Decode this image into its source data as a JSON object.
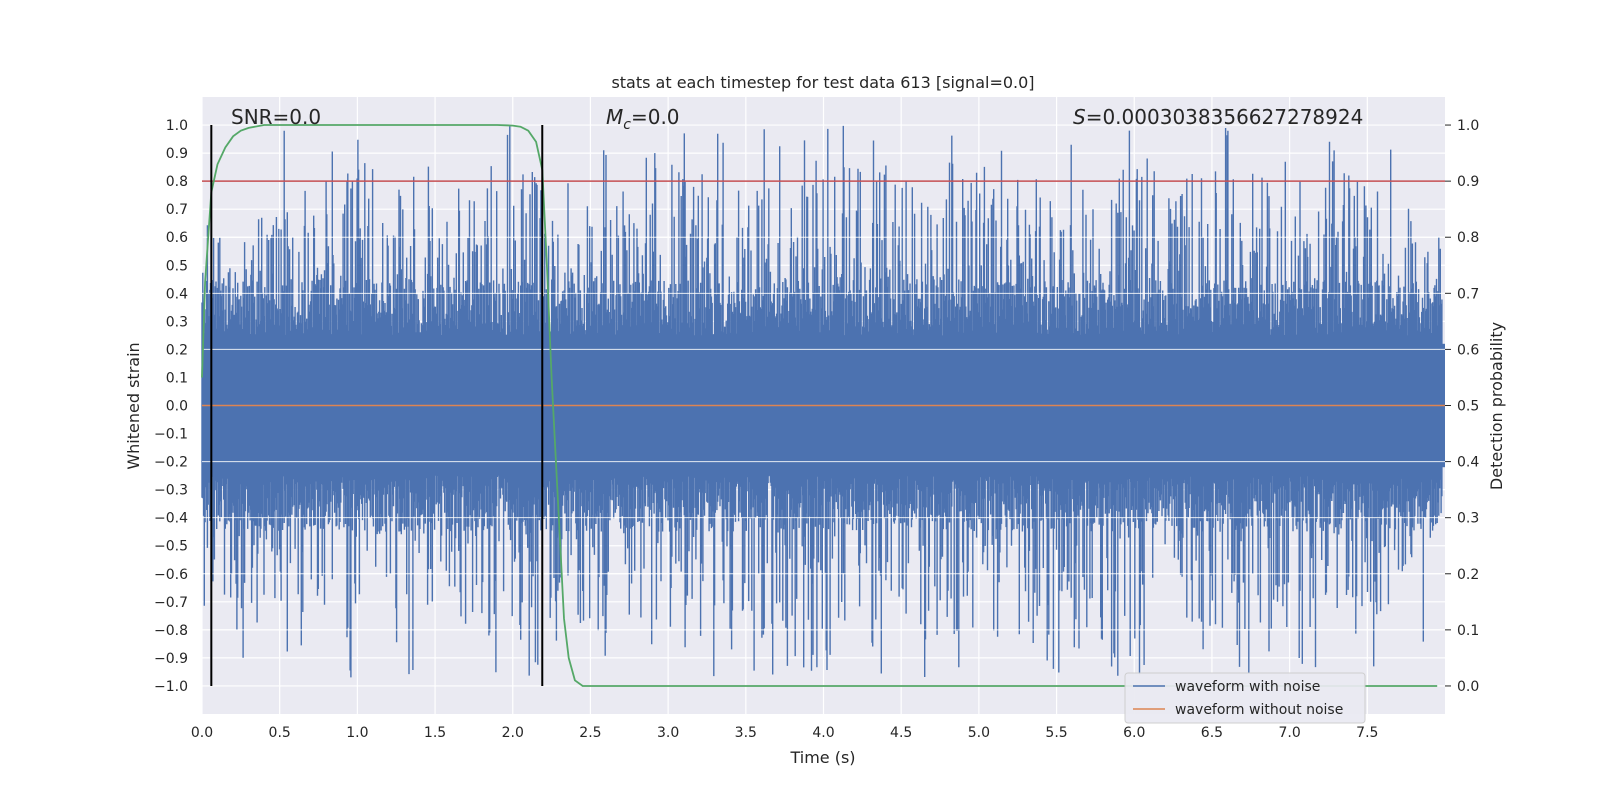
{
  "chart_data": {
    "type": "line",
    "title": "stats at each timestep for test data 613 [signal=0.0]",
    "xlabel": "Time (s)",
    "ylabel": "Whitened strain",
    "y2label": "Detection probability",
    "xlim": [
      0.0,
      8.0
    ],
    "ylim": [
      -1.1,
      1.1
    ],
    "y2lim": [
      -0.05,
      1.05
    ],
    "xticks": [
      0.0,
      0.5,
      1.0,
      1.5,
      2.0,
      2.5,
      3.0,
      3.5,
      4.0,
      4.5,
      5.0,
      5.5,
      6.0,
      6.5,
      7.0,
      7.5
    ],
    "xtick_labels": [
      "0.0",
      "0.5",
      "1.0",
      "1.5",
      "2.0",
      "2.5",
      "3.0",
      "3.5",
      "4.0",
      "4.5",
      "5.0",
      "5.5",
      "6.0",
      "6.5",
      "7.0",
      "7.5"
    ],
    "yticks": [
      -1.0,
      -0.9,
      -0.8,
      -0.7,
      -0.6,
      -0.5,
      -0.4,
      -0.3,
      -0.2,
      -0.1,
      0.0,
      0.1,
      0.2,
      0.3,
      0.4,
      0.5,
      0.6,
      0.7,
      0.8,
      0.9,
      1.0
    ],
    "ytick_labels": [
      "−1.0",
      "−0.9",
      "−0.8",
      "−0.7",
      "−0.6",
      "−0.5",
      "−0.4",
      "−0.3",
      "−0.2",
      "−0.1",
      "0.0",
      "0.1",
      "0.2",
      "0.3",
      "0.4",
      "0.5",
      "0.6",
      "0.7",
      "0.8",
      "0.9",
      "1.0"
    ],
    "y2ticks": [
      0.0,
      0.1,
      0.2,
      0.3,
      0.4,
      0.5,
      0.6,
      0.7,
      0.8,
      0.9,
      1.0
    ],
    "y2tick_labels": [
      "0.0",
      "0.1",
      "0.2",
      "0.3",
      "0.4",
      "0.5",
      "0.6",
      "0.7",
      "0.8",
      "0.9",
      "1.0"
    ],
    "grid": true,
    "legend_position": "bottom-right",
    "annotations": {
      "snr": "SNR=0.0",
      "mc_symbol": "M",
      "mc_subscript": "c",
      "mc_value": "=0.0",
      "s_symbol": "S",
      "s_value": "=0.0003038356627278924"
    },
    "vertical_markers_x": [
      0.06,
      2.19
    ],
    "threshold": {
      "axis": "y2",
      "value": 0.9
    },
    "series": [
      {
        "name": "waveform with noise",
        "axis": "y",
        "color": "#4c72b0",
        "description_envelope": {
          "t": [
            0.0,
            0.5,
            1.0,
            1.5,
            2.0,
            2.5,
            3.0,
            3.5,
            4.0,
            4.5,
            5.0,
            5.5,
            6.0,
            6.5,
            7.0,
            7.5,
            8.0
          ],
          "upper": [
            0.65,
            0.7,
            0.9,
            0.75,
            0.9,
            0.75,
            0.85,
            0.8,
            0.9,
            0.85,
            0.9,
            0.8,
            0.85,
            0.8,
            0.9,
            0.85,
            0.6
          ],
          "lower": [
            -0.75,
            -0.7,
            -0.85,
            -0.75,
            -0.9,
            -0.8,
            -0.9,
            -0.8,
            -0.95,
            -0.9,
            -0.85,
            -0.9,
            -0.9,
            -0.85,
            -0.9,
            -0.8,
            -0.5
          ]
        },
        "max": 1.0,
        "min": -0.97
      },
      {
        "name": "waveform without noise",
        "axis": "y",
        "color": "#dd8452",
        "x": [
          0.0,
          8.0
        ],
        "y": [
          0.0,
          0.0
        ]
      },
      {
        "name": "detection probability",
        "axis": "y2",
        "color": "#55a868",
        "x": [
          0.0,
          0.02,
          0.04,
          0.06,
          0.1,
          0.15,
          0.2,
          0.25,
          0.3,
          0.4,
          0.5,
          1.0,
          1.5,
          1.9,
          2.0,
          2.05,
          2.1,
          2.15,
          2.19,
          2.22,
          2.25,
          2.3,
          2.33,
          2.36,
          2.4,
          2.45,
          2.5,
          3.0,
          5.0,
          7.0,
          7.95
        ],
        "y": [
          0.55,
          0.72,
          0.8,
          0.88,
          0.93,
          0.96,
          0.98,
          0.99,
          0.995,
          1.0,
          1.0,
          1.0,
          1.0,
          1.0,
          0.999,
          0.997,
          0.99,
          0.97,
          0.92,
          0.75,
          0.55,
          0.28,
          0.12,
          0.05,
          0.01,
          0.0,
          0.0,
          0.0,
          0.0,
          0.0,
          0.0
        ]
      }
    ]
  },
  "colors": {
    "plot_bg": "#eaeaf2",
    "grid": "#ffffff",
    "noise": "#4c72b0",
    "clean": "#dd8452",
    "prob": "#55a868",
    "threshold": "#c44e52",
    "marker": "#000000"
  },
  "legend": {
    "items": [
      {
        "label": "waveform with noise",
        "color": "#4c72b0"
      },
      {
        "label": "waveform without noise",
        "color": "#dd8452"
      }
    ]
  }
}
